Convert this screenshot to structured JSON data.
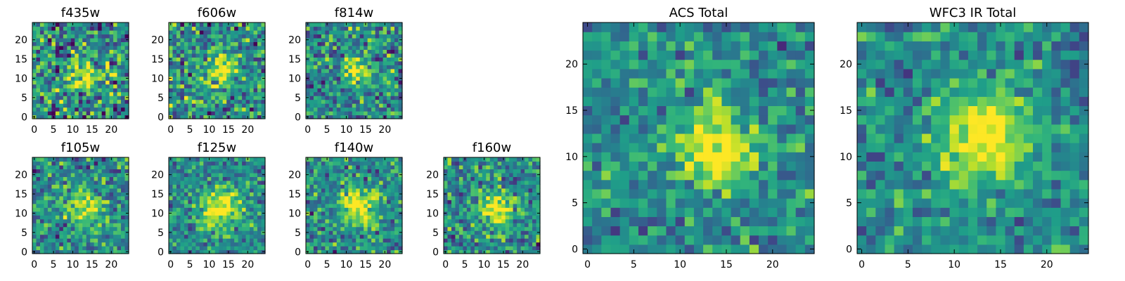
{
  "chart_data": [
    {
      "type": "heatmap",
      "title": "f435w",
      "colormap": "viridis",
      "n": 25,
      "peak": [
        12,
        11
      ],
      "sigma": 2.6,
      "noise": 0.45,
      "xticks": [
        "0",
        "5",
        "10",
        "15",
        "20"
      ],
      "yticks": [
        "0",
        "5",
        "10",
        "15",
        "20"
      ],
      "xlim": [
        -0.5,
        24.5
      ],
      "ylim": [
        -0.5,
        24.5
      ]
    },
    {
      "type": "heatmap",
      "title": "f606w",
      "colormap": "viridis",
      "n": 25,
      "peak": [
        13,
        12
      ],
      "sigma": 2.6,
      "noise": 0.42,
      "xticks": [
        "0",
        "5",
        "10",
        "15",
        "20"
      ],
      "yticks": [
        "0",
        "5",
        "10",
        "15",
        "20"
      ],
      "xlim": [
        -0.5,
        24.5
      ],
      "ylim": [
        -0.5,
        24.5
      ]
    },
    {
      "type": "heatmap",
      "title": "f814w",
      "colormap": "viridis",
      "n": 25,
      "peak": [
        13,
        12
      ],
      "sigma": 2.4,
      "noise": 0.38,
      "xticks": [
        "0",
        "5",
        "10",
        "15",
        "20"
      ],
      "yticks": [
        "0",
        "5",
        "10",
        "15",
        "20"
      ],
      "xlim": [
        -0.5,
        24.5
      ],
      "ylim": [
        -0.5,
        24.5
      ]
    },
    {
      "type": "heatmap",
      "title": "f105w",
      "colormap": "viridis",
      "n": 25,
      "peak": [
        13,
        12
      ],
      "sigma": 3.2,
      "noise": 0.35,
      "xticks": [
        "0",
        "5",
        "10",
        "15",
        "20"
      ],
      "yticks": [
        "0",
        "5",
        "10",
        "15",
        "20"
      ],
      "xlim": [
        -0.5,
        24.5
      ],
      "ylim": [
        -0.5,
        24.5
      ]
    },
    {
      "type": "heatmap",
      "title": "f125w",
      "colormap": "viridis",
      "n": 25,
      "peak": [
        13,
        11
      ],
      "sigma": 3.6,
      "noise": 0.3,
      "xticks": [
        "0",
        "5",
        "10",
        "15",
        "20"
      ],
      "yticks": [
        "0",
        "5",
        "10",
        "15",
        "20"
      ],
      "xlim": [
        -0.5,
        24.5
      ],
      "ylim": [
        -0.5,
        24.5
      ]
    },
    {
      "type": "heatmap",
      "title": "f140w",
      "colormap": "viridis",
      "n": 25,
      "peak": [
        13,
        12
      ],
      "sigma": 3.4,
      "noise": 0.33,
      "xticks": [
        "0",
        "5",
        "10",
        "15",
        "20"
      ],
      "yticks": [
        "0",
        "5",
        "10",
        "15",
        "20"
      ],
      "xlim": [
        -0.5,
        24.5
      ],
      "ylim": [
        -0.5,
        24.5
      ]
    },
    {
      "type": "heatmap",
      "title": "f160w",
      "colormap": "viridis",
      "n": 25,
      "peak": [
        13,
        11
      ],
      "sigma": 3.2,
      "noise": 0.34,
      "xticks": [
        "0",
        "5",
        "10",
        "15",
        "20"
      ],
      "yticks": [
        "0",
        "5",
        "10",
        "15",
        "20"
      ],
      "xlim": [
        -0.5,
        24.5
      ],
      "ylim": [
        -0.5,
        24.5
      ]
    },
    {
      "type": "heatmap",
      "title": "ACS Total",
      "colormap": "viridis",
      "n": 25,
      "peak": [
        14,
        11
      ],
      "sigma": 3.0,
      "noise": 0.28,
      "xticks": [
        "0",
        "5",
        "10",
        "15",
        "20"
      ],
      "yticks": [
        "0",
        "5",
        "10",
        "15",
        "20"
      ],
      "xlim": [
        -0.5,
        24.5
      ],
      "ylim": [
        -0.5,
        24.5
      ]
    },
    {
      "type": "heatmap",
      "title": "WFC3 IR Total",
      "colormap": "viridis",
      "n": 25,
      "peak": [
        13,
        12
      ],
      "sigma": 3.6,
      "noise": 0.26,
      "xticks": [
        "0",
        "5",
        "10",
        "15",
        "20"
      ],
      "yticks": [
        "0",
        "5",
        "10",
        "15",
        "20"
      ],
      "xlim": [
        -0.5,
        24.5
      ],
      "ylim": [
        -0.5,
        24.5
      ]
    }
  ]
}
